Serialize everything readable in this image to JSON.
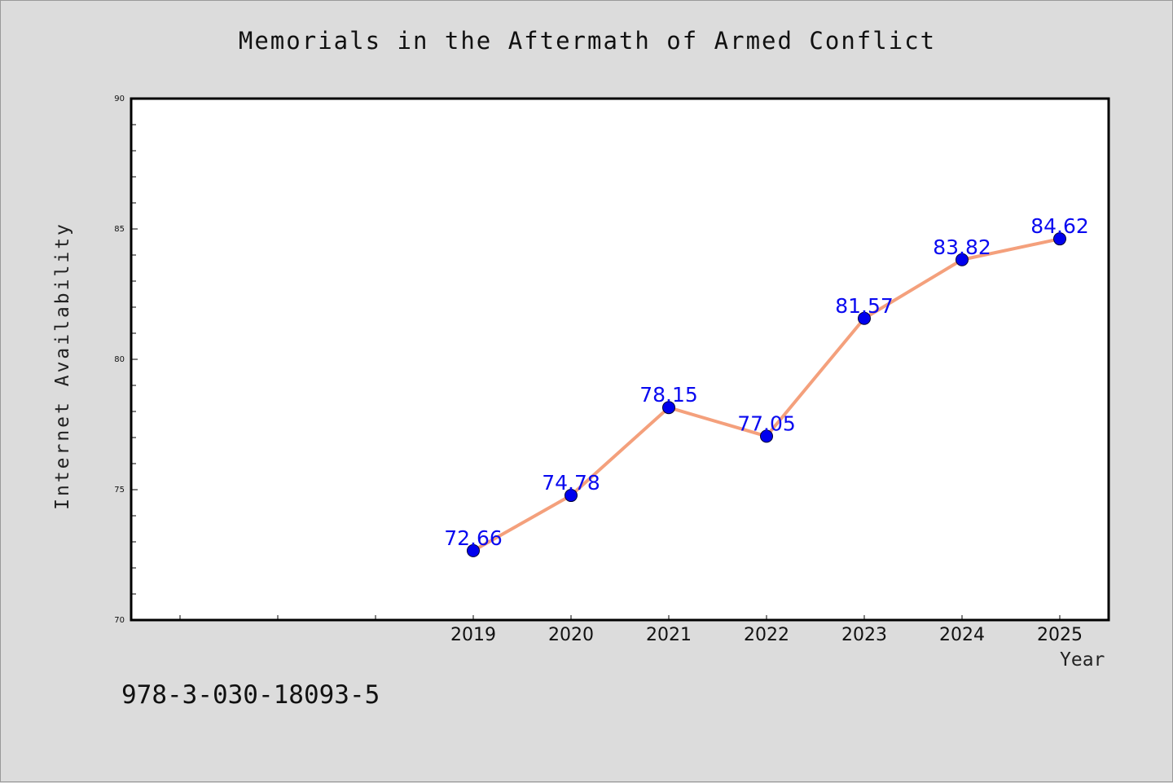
{
  "chart_data": {
    "type": "line",
    "title": "Memorials in the Aftermath of Armed Conflict",
    "xlabel": "Year",
    "ylabel": "Internet Availability",
    "x": [
      2019,
      2020,
      2021,
      2022,
      2023,
      2024,
      2025
    ],
    "series": [
      {
        "values": [
          72.66,
          74.78,
          78.15,
          77.05,
          81.57,
          83.82,
          84.62
        ],
        "line_color": "#f4a07c",
        "marker_color": "#0000ee"
      }
    ],
    "data_labels": [
      "72.66",
      "74.78",
      "78.15",
      "77.05",
      "81.57",
      "83.82",
      "84.62"
    ],
    "ylim": [
      70,
      90
    ],
    "yticks": [
      70,
      75,
      80,
      85,
      90
    ],
    "ytick_labels": [
      "70",
      "75",
      "80",
      "85",
      "90"
    ],
    "xlim": [
      2015.5,
      2025.5
    ],
    "xtick_labels": [
      "2019",
      "2020",
      "2021",
      "2022",
      "2023",
      "2024",
      "2025"
    ],
    "grid": false,
    "legend": "none"
  },
  "annotation": "978-3-030-18093-5",
  "colors": {
    "background": "#dcdcdc",
    "plot_area": "#ffffff",
    "line": "#f4a07c",
    "marker": "#0000ee",
    "data_label": "#0a0af0"
  }
}
